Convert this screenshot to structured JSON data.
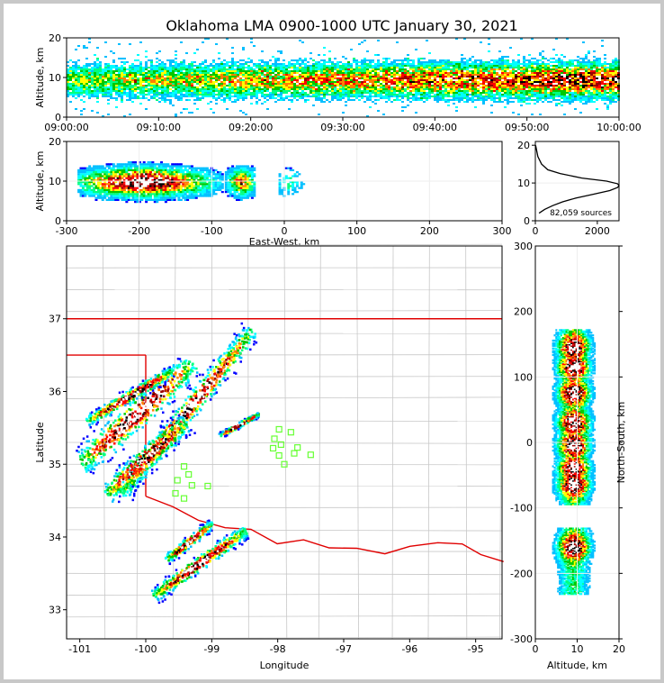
{
  "title": "Oklahoma LMA 0900-1000 UTC January 30, 2021",
  "colors": {
    "ramp": [
      "#0000ff",
      "#00bfff",
      "#00ffff",
      "#00ff7f",
      "#00c800",
      "#ffff00",
      "#ff7f00",
      "#ff0000",
      "#9c0000",
      "#000000",
      "#ffffff"
    ],
    "border": "#cc0000",
    "county": "#c8c8c8",
    "station": "#66ff33"
  },
  "chart_data": [
    {
      "type": "heatmap",
      "id": "time-height",
      "xlabel": "",
      "ylabel": "Altitude, km",
      "x_ticks": [
        "09:00:00",
        "09:10:00",
        "09:20:00",
        "09:30:00",
        "09:40:00",
        "09:50:00",
        "10:00:00"
      ],
      "xlim": [
        0,
        60
      ],
      "ylim": [
        0,
        20
      ],
      "y_ticks": [
        "0",
        "10",
        "20"
      ],
      "core_altitude_km": 9.5,
      "x_units": "minutes after 09:00"
    },
    {
      "type": "heatmap",
      "id": "ew-height",
      "xlabel": "East-West, km",
      "ylabel": "Altitude, km",
      "xlim": [
        -300,
        300
      ],
      "x_ticks": [
        "-300",
        "-200",
        "-100",
        "0",
        "100",
        "200",
        "300"
      ],
      "ylim": [
        0,
        20
      ],
      "y_ticks": [
        "0",
        "10",
        "20"
      ],
      "clusters": [
        {
          "x_range": [
            -285,
            -85
          ],
          "alt_range": [
            3,
            20
          ],
          "core_x": -195
        },
        {
          "x_range": [
            -85,
            -40
          ],
          "alt_range": [
            4,
            14
          ],
          "core_x": -60
        },
        {
          "x_range": [
            -8,
            38
          ],
          "alt_range": [
            0,
            19
          ],
          "core_x": 5
        }
      ]
    },
    {
      "type": "line",
      "id": "altitude-histogram",
      "xlim": [
        0,
        2700
      ],
      "x_ticks": [
        "0",
        "2000"
      ],
      "ylim": [
        0,
        21
      ],
      "y_ticks": [
        "0",
        "10",
        "20"
      ],
      "annotation": "82,059 sources",
      "x": [
        120,
        300,
        560,
        880,
        1300,
        1850,
        2400,
        2650,
        2700,
        2650,
        2300,
        1500,
        800,
        400,
        200,
        80,
        10
      ],
      "y": [
        2,
        3,
        4,
        5,
        6,
        7,
        8,
        8.8,
        9.3,
        9.8,
        10.5,
        11.3,
        12.5,
        13.5,
        15,
        17,
        20
      ]
    },
    {
      "type": "heatmap",
      "id": "plan-view",
      "xlabel": "Longitude",
      "ylabel": "Latitude",
      "xlim": [
        -101.2,
        -94.6
      ],
      "x_ticks": [
        "-101",
        "-100",
        "-99",
        "-98",
        "-97",
        "-96",
        "-95"
      ],
      "ylim": [
        32.6,
        38.0
      ],
      "y_ticks": [
        "33",
        "34",
        "35",
        "36",
        "37"
      ],
      "bands": [
        {
          "from": [
            -100.4,
            34.6
          ],
          "to": [
            -98.4,
            36.85
          ],
          "width": 0.2
        },
        {
          "from": [
            -101.0,
            35.0
          ],
          "to": [
            -99.3,
            36.4
          ],
          "width": 0.28
        },
        {
          "from": [
            -100.6,
            34.6
          ],
          "to": [
            -99.4,
            35.6
          ],
          "width": 0.22
        },
        {
          "from": [
            -100.9,
            35.6
          ],
          "to": [
            -99.6,
            36.3
          ],
          "width": 0.12
        },
        {
          "from": [
            -99.9,
            33.2
          ],
          "to": [
            -98.5,
            34.1
          ],
          "width": 0.14
        },
        {
          "from": [
            -99.7,
            33.7
          ],
          "to": [
            -99.0,
            34.2
          ],
          "width": 0.1
        },
        {
          "from": [
            -98.9,
            35.4
          ],
          "to": [
            -98.3,
            35.7
          ],
          "width": 0.05
        }
      ],
      "stations": [
        [
          -97.98,
          35.48
        ],
        [
          -97.8,
          35.44
        ],
        [
          -98.05,
          35.35
        ],
        [
          -97.95,
          35.27
        ],
        [
          -97.7,
          35.23
        ],
        [
          -98.07,
          35.22
        ],
        [
          -97.75,
          35.15
        ],
        [
          -97.98,
          35.12
        ],
        [
          -97.5,
          35.13
        ],
        [
          -97.9,
          35.0
        ],
        [
          -99.42,
          34.97
        ],
        [
          -99.35,
          34.86
        ],
        [
          -99.52,
          34.78
        ],
        [
          -99.3,
          34.71
        ],
        [
          -99.06,
          34.7
        ],
        [
          -99.55,
          34.6
        ],
        [
          -99.42,
          34.53
        ]
      ]
    },
    {
      "type": "heatmap",
      "id": "ns-height",
      "xlabel": "Altitude, km",
      "ylabel": "North-South, km",
      "xlim": [
        0,
        20
      ],
      "x_ticks": [
        "0",
        "10",
        "20"
      ],
      "ylim": [
        -300,
        300
      ],
      "y_ticks": [
        "-300",
        "-200",
        "-100",
        "0",
        "100",
        "200",
        "300"
      ],
      "clusters": [
        {
          "ns_range": [
            -95,
            172
          ],
          "alt_range": [
            2,
            20
          ]
        },
        {
          "ns_range": [
            -232,
            -130
          ],
          "alt_range": [
            2,
            15
          ]
        },
        {
          "ns_range": [
            -120,
            -105
          ],
          "alt_range": [
            1,
            6
          ]
        }
      ],
      "cores": [
        -65,
        -40,
        -5,
        30,
        75,
        115,
        145,
        -160
      ]
    }
  ]
}
